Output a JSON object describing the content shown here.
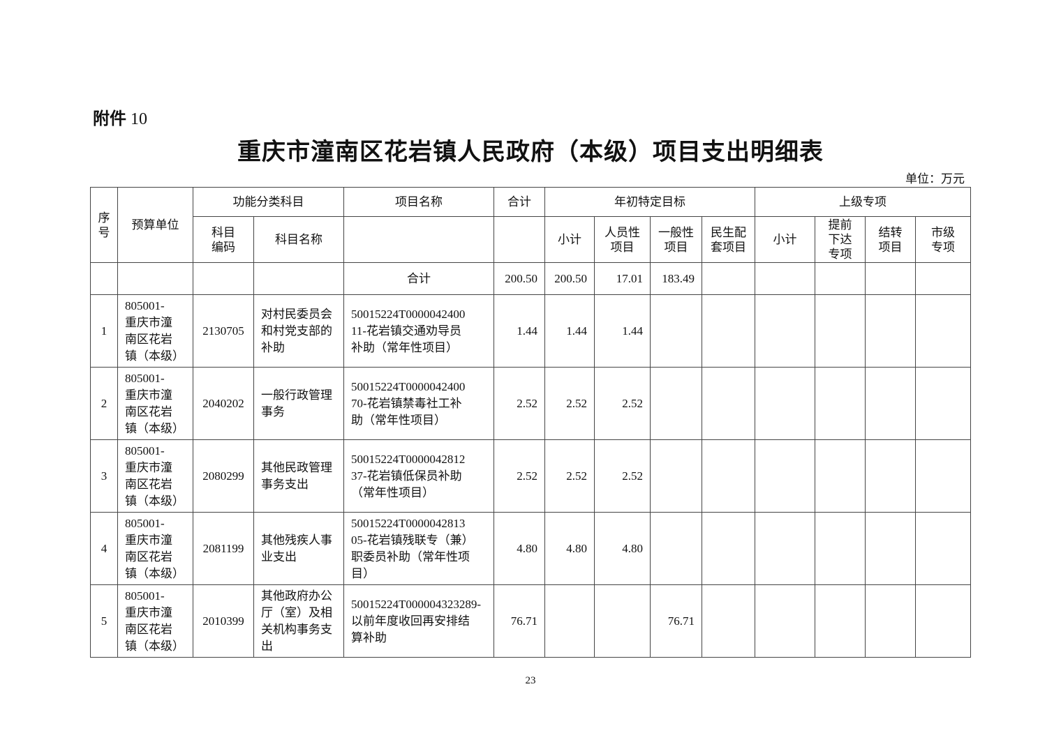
{
  "attachment": {
    "label": "附件",
    "number": "10"
  },
  "title": "重庆市潼南区花岩镇人民政府（本级）项目支出明细表",
  "unit": "单位：万元",
  "headers": {
    "seq": "序\n号",
    "unit": "预算单位",
    "func_group": "功能分类科目",
    "project_name": "项目名称",
    "total": "合计",
    "annual_group": "年初特定目标",
    "upper_group": "上级专项",
    "code": "科目\n编码",
    "subject_name": "科目名称",
    "annual_subtotal": "小计",
    "personnel": "人员性\n项目",
    "general": "一般性\n项目",
    "livelihood": "民生配\n套项目",
    "upper_subtotal": "小计",
    "advance": "提前\n下达\n专项",
    "carryover": "结转\n项目",
    "city": "市级\n专项"
  },
  "total_row": {
    "label": "合计",
    "total": "200.50",
    "annual_subtotal": "200.50",
    "personnel": "17.01",
    "general": "183.49"
  },
  "rows": [
    {
      "seq": "1",
      "unit": "805001-\n重庆市潼\n南区花岩\n镇（本级）",
      "code": "2130705",
      "subject": "对村民委员会\n和村党支部的\n补助",
      "project": "50015224T0000042400\n11-花岩镇交通劝导员\n补助（常年性项目）",
      "total": "1.44",
      "annual_subtotal": "1.44",
      "personnel": "1.44",
      "general": ""
    },
    {
      "seq": "2",
      "unit": "805001-\n重庆市潼\n南区花岩\n镇（本级）",
      "code": "2040202",
      "subject": "  一般行政管理\n事务",
      "project": "50015224T0000042400\n70-花岩镇禁毒社工补\n助（常年性项目）",
      "total": "2.52",
      "annual_subtotal": "2.52",
      "personnel": "2.52",
      "general": ""
    },
    {
      "seq": "3",
      "unit": "805001-\n重庆市潼\n南区花岩\n镇（本级）",
      "code": "2080299",
      "subject": "其他民政管理\n事务支出",
      "project": "50015224T0000042812\n37-花岩镇低保员补助\n（常年性项目）",
      "total": "2.52",
      "annual_subtotal": "2.52",
      "personnel": "2.52",
      "general": ""
    },
    {
      "seq": "4",
      "unit": "805001-\n重庆市潼\n南区花岩\n镇（本级）",
      "code": "2081199",
      "subject": "其他残疾人事\n业支出",
      "project": "50015224T0000042813\n05-花岩镇残联专（兼）\n职委员补助（常年性项\n目）",
      "total": "4.80",
      "annual_subtotal": "4.80",
      "personnel": "4.80",
      "general": ""
    },
    {
      "seq": "5",
      "unit": "805001-\n重庆市潼\n南区花岩\n镇（本级）",
      "code": "2010399",
      "subject": "其他政府办公\n厅（室）及相\n关机构事务支\n出",
      "project": "50015224T000004323289-\n以前年度收回再安排结\n算补助",
      "total": "76.71",
      "annual_subtotal": "",
      "personnel": "",
      "general": "76.71"
    }
  ],
  "page_number": "23"
}
